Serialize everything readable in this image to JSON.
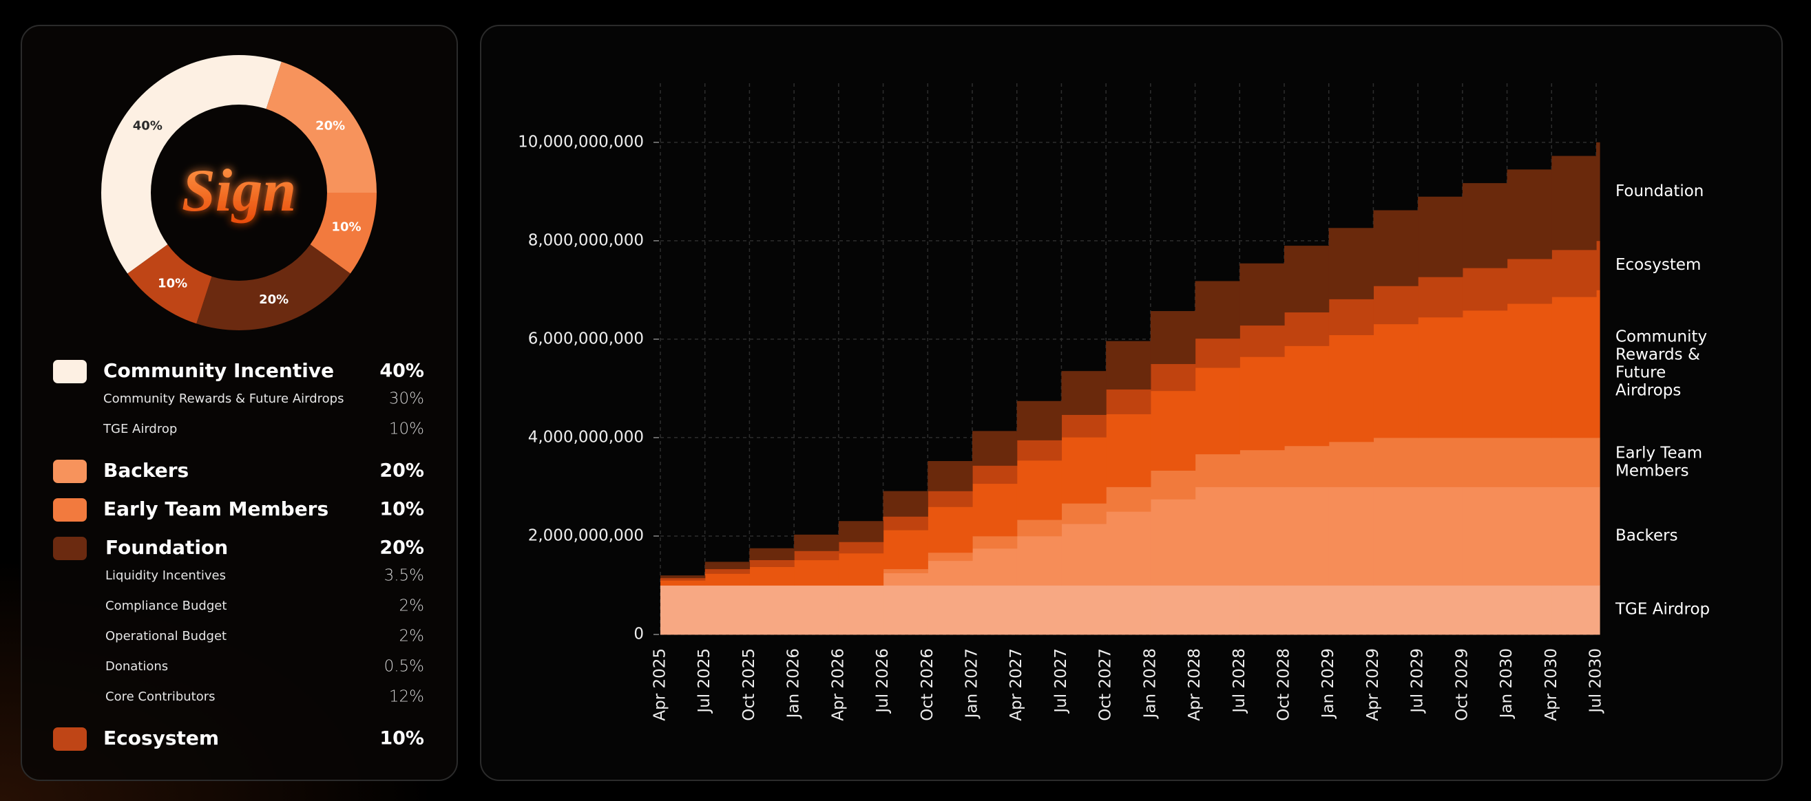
{
  "chart_data": [
    {
      "type": "donut",
      "logo": "Sign",
      "categories": [
        "Community Incentive",
        "Backers",
        "Early Team Members",
        "Foundation",
        "Ecosystem"
      ],
      "values": [
        40,
        20,
        10,
        20,
        10
      ],
      "value_labels": [
        "40%",
        "20%",
        "10%",
        "20%",
        "10%"
      ],
      "colors": [
        "#fdf0e3",
        "#f7935c",
        "#f27a3e",
        "#6b2a10",
        "#bf4516"
      ],
      "breakdown": [
        [
          {
            "name": "Community Rewards & Future Airdrops",
            "share": "30%"
          },
          {
            "name": "TGE Airdrop",
            "share": "10%"
          }
        ],
        [],
        [],
        [
          {
            "name": "Liquidity Incentives",
            "share": "3.5%"
          },
          {
            "name": "Compliance Budget",
            "share": "2%"
          },
          {
            "name": "Operational Budget",
            "share": "2%"
          },
          {
            "name": "Donations",
            "share": "0.5%"
          },
          {
            "name": "Core Contributors",
            "share": "12%"
          }
        ],
        []
      ]
    },
    {
      "type": "area",
      "stacked": true,
      "step": true,
      "grid": true,
      "categories": [
        "Apr 2025",
        "Jul 2025",
        "Oct 2025",
        "Jan 2026",
        "Apr 2026",
        "Jul 2026",
        "Oct 2026",
        "Jan 2027",
        "Apr 2027",
        "Jul 2027",
        "Oct 2027",
        "Jan 2028",
        "Apr 2028",
        "Jul 2028",
        "Oct 2028",
        "Jan 2029",
        "Apr 2029",
        "Jul 2029",
        "Oct 2029",
        "Jan 2030",
        "Apr 2030",
        "Jul 2030"
      ],
      "ylim": [
        0,
        11200000000
      ],
      "yticks": [
        0,
        {
          "value": 2000000000,
          "label": "2,000,000,000"
        },
        {
          "value": 4000000000,
          "label": "4,000,000,000"
        },
        {
          "value": 6000000000,
          "label": "6,000,000,000"
        },
        {
          "value": 8000000000,
          "label": "8,000,000,000"
        },
        {
          "value": 10000000000,
          "label": "10,000,000,000"
        }
      ],
      "series": [
        {
          "name": "TGE Airdrop",
          "color": "#f7a883",
          "values": [
            1000000000,
            1000000000,
            1000000000,
            1000000000,
            1000000000,
            1000000000,
            1000000000,
            1000000000,
            1000000000,
            1000000000,
            1000000000,
            1000000000,
            1000000000,
            1000000000,
            1000000000,
            1000000000,
            1000000000,
            1000000000,
            1000000000,
            1000000000,
            1000000000,
            1000000000
          ]
        },
        {
          "name": "Backers",
          "color": "#f68d58",
          "values": [
            0,
            0,
            0,
            0,
            0,
            250000000,
            500000000,
            750000000,
            1000000000,
            1250000000,
            1500000000,
            1750000000,
            2000000000,
            2000000000,
            2000000000,
            2000000000,
            2000000000,
            2000000000,
            2000000000,
            2000000000,
            2000000000,
            2000000000
          ]
        },
        {
          "name": "Early Team Members",
          "color": "#f17a3c",
          "values": [
            0,
            0,
            0,
            0,
            0,
            83333333,
            166666667,
            250000000,
            333333333,
            416666667,
            500000000,
            583333333,
            666666667,
            750000000,
            833333333,
            916666667,
            1000000000,
            1000000000,
            1000000000,
            1000000000,
            1000000000,
            1000000000
          ]
        },
        {
          "name": "Community Rewards & Future Airdrops",
          "color": "#e9560f",
          "values": [
            100000000,
            238000000,
            376000000,
            514000000,
            652000000,
            790000000,
            929000000,
            1067000000,
            1205000000,
            1343000000,
            1481000000,
            1619000000,
            1757000000,
            1895000000,
            2033000000,
            2171000000,
            2310000000,
            2448000000,
            2586000000,
            2724000000,
            2862000000,
            3000000000
          ]
        },
        {
          "name": "Ecosystem",
          "color": "#c0430f",
          "values": [
            50000000,
            95000000,
            140000000,
            186000000,
            231000000,
            276000000,
            321000000,
            367000000,
            412000000,
            457000000,
            502000000,
            548000000,
            593000000,
            638000000,
            683000000,
            729000000,
            774000000,
            819000000,
            864000000,
            910000000,
            955000000,
            1000000000
          ]
        },
        {
          "name": "Foundation",
          "color": "#6a290c",
          "values": [
            50000000,
            143000000,
            236000000,
            329000000,
            421000000,
            514000000,
            607000000,
            700000000,
            793000000,
            886000000,
            979000000,
            1071000000,
            1164000000,
            1257000000,
            1350000000,
            1443000000,
            1536000000,
            1629000000,
            1721000000,
            1814000000,
            1907000000,
            2000000000
          ]
        }
      ]
    }
  ]
}
